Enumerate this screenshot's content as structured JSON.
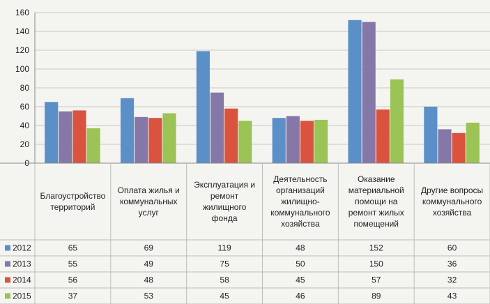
{
  "chart_data": {
    "type": "bar",
    "categories": [
      [
        "Благоустройство",
        "территорий"
      ],
      [
        "Оплата жилья и",
        "коммунальных",
        "услуг"
      ],
      [
        "Эксплуатация и",
        "ремонт",
        "жилищного",
        "фонда"
      ],
      [
        "Деятельность",
        "организаций",
        "жилищно-",
        "коммунального",
        "хозяйства"
      ],
      [
        "Оказание",
        "материальной",
        "помощи на",
        "ремонт жилых",
        "помещений"
      ],
      [
        "Другие вопросы",
        "коммунального",
        "хозяйства"
      ]
    ],
    "series": [
      {
        "name": "2012",
        "color": "#5b8fc8",
        "values": [
          65,
          69,
          119,
          48,
          152,
          60
        ]
      },
      {
        "name": "2013",
        "color": "#8577a8",
        "values": [
          55,
          49,
          75,
          50,
          150,
          36
        ]
      },
      {
        "name": "2014",
        "color": "#d9533e",
        "values": [
          56,
          48,
          58,
          45,
          57,
          32
        ]
      },
      {
        "name": "2015",
        "color": "#9cc355",
        "values": [
          37,
          53,
          45,
          46,
          89,
          43
        ]
      }
    ],
    "ylim": [
      0,
      160
    ],
    "yticks": [
      0,
      20,
      40,
      60,
      80,
      100,
      120,
      140,
      160
    ],
    "grid": true,
    "legend": "data-table-left"
  }
}
